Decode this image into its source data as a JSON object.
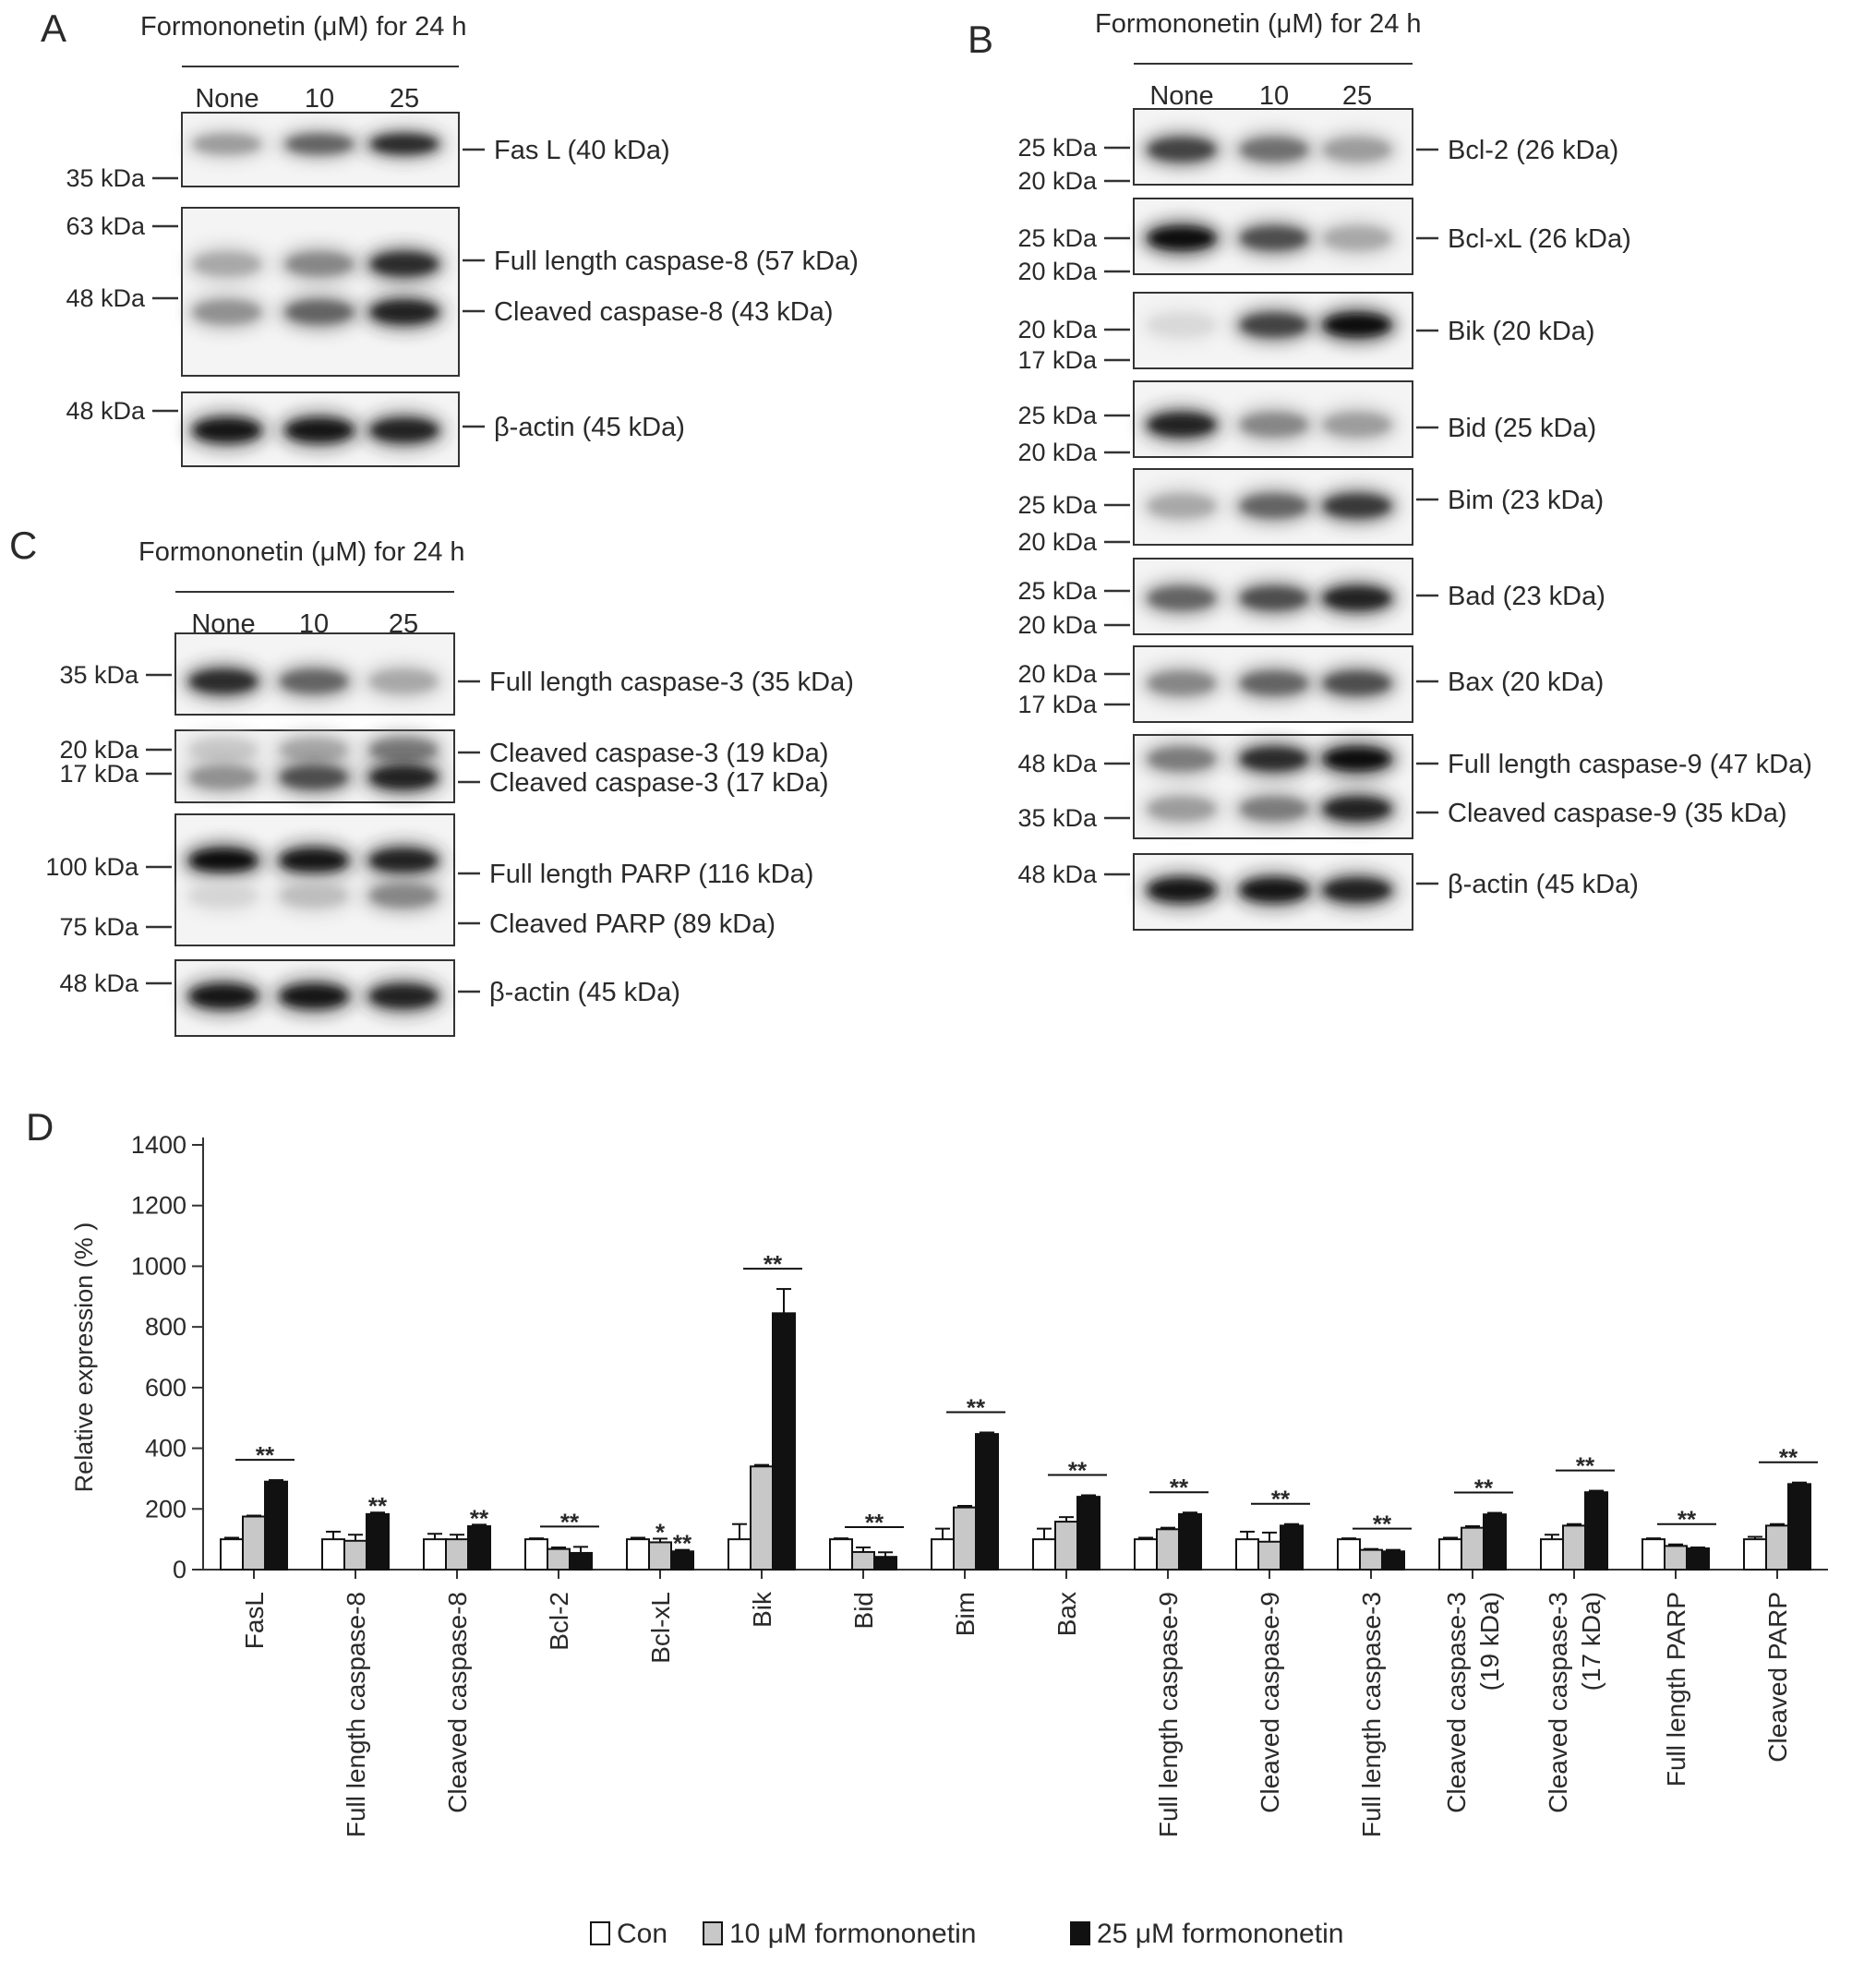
{
  "panelA": {
    "letter": "A",
    "header": "Formononetin (μM) for 24 h",
    "lanes": [
      "None",
      "10",
      "25"
    ],
    "blots": [
      {
        "markers": [
          "35 kDa"
        ],
        "labels": [
          "Fas L (40 kDa)"
        ],
        "levels": [
          [
            0.35,
            0.6,
            0.85
          ]
        ],
        "kind": [
          "smear"
        ]
      },
      {
        "markers": [
          "63 kDa",
          "48 kDa"
        ],
        "labels": [
          "Full length caspase-8 (57 kDa)",
          "Cleaved caspase-8 (43 kDa)"
        ],
        "levels": [
          [
            0.3,
            0.45,
            0.85
          ],
          [
            0.4,
            0.6,
            0.9
          ]
        ],
        "kind": [
          "band",
          "band"
        ]
      },
      {
        "markers": [
          "48 kDa"
        ],
        "labels": [
          "β-actin (45 kDa)"
        ],
        "levels": [
          [
            0.95,
            0.95,
            0.9
          ]
        ],
        "kind": [
          "band"
        ]
      }
    ]
  },
  "panelB": {
    "letter": "B",
    "header": "Formononetin (μM) for 24 h",
    "lanes": [
      "None",
      "10",
      "25"
    ],
    "blots": [
      {
        "markers": [
          "25 kDa",
          "20 kDa"
        ],
        "labels": [
          "Bcl-2 (26 kDa)"
        ],
        "levels": [
          [
            0.75,
            0.55,
            0.35
          ]
        ],
        "kind": [
          "band"
        ]
      },
      {
        "markers": [
          "25 kDa",
          "20 kDa"
        ],
        "labels": [
          "Bcl-xL (26 kDa)"
        ],
        "levels": [
          [
            1.0,
            0.7,
            0.3
          ]
        ],
        "kind": [
          "band"
        ]
      },
      {
        "markers": [
          "20 kDa",
          "17 kDa"
        ],
        "labels": [
          "Bik (20 kDa)"
        ],
        "levels": [
          [
            0.08,
            0.75,
            1.0
          ]
        ],
        "kind": [
          "band"
        ]
      },
      {
        "markers": [
          "25 kDa",
          "20 kDa"
        ],
        "labels": [
          "Bid (25 kDa)"
        ],
        "levels": [
          [
            0.9,
            0.45,
            0.35
          ]
        ],
        "kind": [
          "band"
        ]
      },
      {
        "markers": [
          "25 kDa",
          "20 kDa"
        ],
        "labels": [
          "Bim (23 kDa)"
        ],
        "levels": [
          [
            0.3,
            0.6,
            0.8
          ]
        ],
        "kind": [
          "band"
        ]
      },
      {
        "markers": [
          "25 kDa",
          "20 kDa"
        ],
        "labels": [
          "Bad (23 kDa)"
        ],
        "levels": [
          [
            0.6,
            0.7,
            0.9
          ]
        ],
        "kind": [
          "band"
        ]
      },
      {
        "markers": [
          "20 kDa",
          "17 kDa"
        ],
        "labels": [
          "Bax (20 kDa)"
        ],
        "levels": [
          [
            0.45,
            0.6,
            0.7
          ]
        ],
        "kind": [
          "band"
        ]
      },
      {
        "markers": [
          "48 kDa",
          "35 kDa"
        ],
        "labels": [
          "Full length caspase-9 (47 kDa)",
          "Cleaved caspase-9 (35 kDa)"
        ],
        "levels": [
          [
            0.5,
            0.85,
            1.0
          ],
          [
            0.35,
            0.5,
            0.9
          ]
        ],
        "kind": [
          "band",
          "band"
        ]
      },
      {
        "markers": [
          "48 kDa"
        ],
        "labels": [
          "β-actin (45 kDa)"
        ],
        "levels": [
          [
            0.95,
            0.95,
            0.9
          ]
        ],
        "kind": [
          "band"
        ]
      }
    ]
  },
  "panelC": {
    "letter": "C",
    "header": "Formononetin (μM) for 24 h",
    "lanes": [
      "None",
      "10",
      "25"
    ],
    "blots": [
      {
        "markers": [
          "35 kDa"
        ],
        "labels": [
          "Full length caspase-3 (35 kDa)"
        ],
        "levels": [
          [
            0.85,
            0.6,
            0.3
          ]
        ],
        "kind": [
          "band"
        ]
      },
      {
        "markers": [
          "20 kDa",
          "17 kDa"
        ],
        "labels": [
          "Cleaved caspase-3 (19 kDa)",
          "Cleaved caspase-3 (17 kDa)"
        ],
        "levels": [
          [
            0.15,
            0.3,
            0.5
          ],
          [
            0.4,
            0.7,
            0.9
          ]
        ],
        "kind": [
          "band",
          "band"
        ]
      },
      {
        "markers": [
          "100 kDa",
          "75 kDa"
        ],
        "labels": [
          "Full length PARP (116 kDa)",
          "Cleaved PARP (89 kDa)"
        ],
        "levels": [
          [
            1.0,
            0.95,
            0.9
          ],
          [
            0.1,
            0.2,
            0.45
          ]
        ],
        "kind": [
          "band",
          "band"
        ]
      },
      {
        "markers": [
          "48 kDa"
        ],
        "labels": [
          "β-actin (45 kDa)"
        ],
        "levels": [
          [
            0.95,
            0.95,
            0.9
          ]
        ],
        "kind": [
          "band"
        ]
      }
    ]
  },
  "panelD": {
    "letter": "D"
  },
  "chart_data": {
    "type": "bar",
    "ylabel": "Relative expression (% )",
    "ylim": [
      0,
      1400
    ],
    "yticks": [
      0,
      200,
      400,
      600,
      800,
      1000,
      1200,
      1400
    ],
    "categories": [
      [
        "FasL"
      ],
      [
        "Full length caspase-8"
      ],
      [
        "Cleaved caspase-8"
      ],
      [
        "Bcl-2"
      ],
      [
        "Bcl-xL"
      ],
      [
        "Bik"
      ],
      [
        "Bid"
      ],
      [
        "Bim"
      ],
      [
        "Bax"
      ],
      [
        "Full length caspase-9"
      ],
      [
        "Cleaved caspase-9"
      ],
      [
        "Full length caspase-3"
      ],
      [
        "Cleaved caspase-3",
        "(19 kDa)"
      ],
      [
        "Cleaved caspase-3",
        "(17 kDa)"
      ],
      [
        "Full length PARP"
      ],
      [
        "Cleaved PARP"
      ]
    ],
    "series": [
      {
        "name": "Con",
        "color": "#ffffff",
        "values": [
          100,
          100,
          100,
          100,
          100,
          100,
          100,
          100,
          100,
          100,
          100,
          100,
          100,
          100,
          100,
          100
        ],
        "errors": [
          5,
          25,
          18,
          3,
          5,
          50,
          3,
          35,
          35,
          5,
          25,
          3,
          5,
          15,
          3,
          8
        ]
      },
      {
        "name": "10 μM formononetin",
        "color": "#c8c8c8",
        "values": [
          175,
          95,
          100,
          68,
          90,
          340,
          58,
          205,
          158,
          133,
          92,
          65,
          138,
          145,
          78,
          145
        ],
        "errors": [
          3,
          20,
          15,
          5,
          12,
          5,
          15,
          5,
          15,
          5,
          30,
          3,
          5,
          5,
          5,
          5
        ]
      },
      {
        "name": "25 μM formononetin",
        "color": "#111111",
        "values": [
          290,
          183,
          143,
          55,
          60,
          845,
          42,
          447,
          240,
          183,
          145,
          60,
          182,
          255,
          70,
          282
        ],
        "errors": [
          5,
          5,
          5,
          20,
          5,
          80,
          15,
          5,
          5,
          5,
          5,
          5,
          5,
          5,
          3,
          5
        ]
      }
    ],
    "annotations": [
      {
        "category": 0,
        "text": "**",
        "span": "10-25"
      },
      {
        "category": 1,
        "text": "**",
        "span": "25"
      },
      {
        "category": 2,
        "text": "**",
        "span": "25"
      },
      {
        "category": 3,
        "text": "**",
        "span": "10-25"
      },
      {
        "category": 4,
        "text": "*",
        "span": "10"
      },
      {
        "category": 4,
        "text": "**",
        "span": "25"
      },
      {
        "category": 5,
        "text": "**",
        "span": "10-25"
      },
      {
        "category": 6,
        "text": "**",
        "span": "10-25"
      },
      {
        "category": 7,
        "text": "**",
        "span": "10-25"
      },
      {
        "category": 8,
        "text": "**",
        "span": "10-25"
      },
      {
        "category": 9,
        "text": "**",
        "span": "10-25"
      },
      {
        "category": 10,
        "text": "**",
        "span": "10-25"
      },
      {
        "category": 11,
        "text": "**",
        "span": "10-25"
      },
      {
        "category": 12,
        "text": "**",
        "span": "10-25"
      },
      {
        "category": 13,
        "text": "**",
        "span": "10-25"
      },
      {
        "category": 14,
        "text": "**",
        "span": "10-25"
      },
      {
        "category": 15,
        "text": "**",
        "span": "10-25"
      }
    ],
    "legend": [
      "Con",
      "10 μM formononetin",
      "25 μM formononetin"
    ],
    "legend_position": "bottom"
  }
}
